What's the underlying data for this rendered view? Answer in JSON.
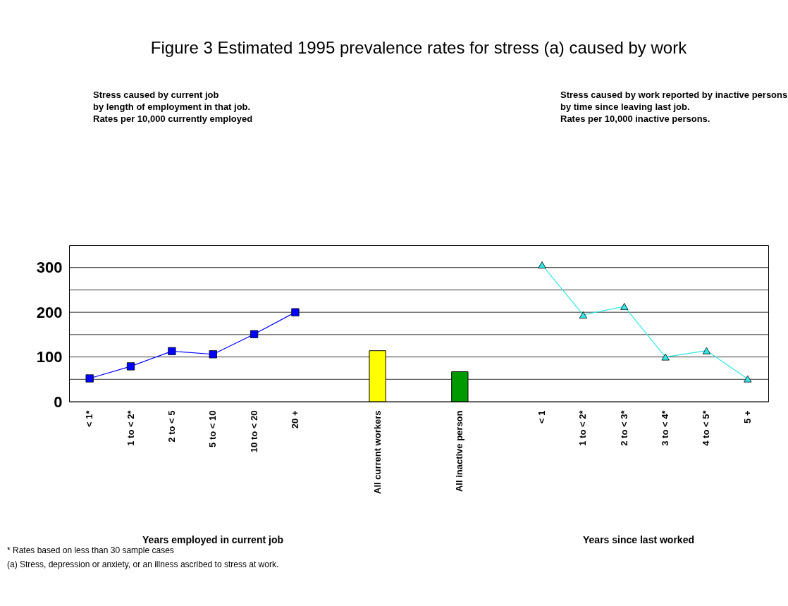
{
  "chart_data": {
    "type": "line",
    "title": "Figure 3 Estimated 1995 prevalence rates for stress (a) caused by work",
    "categories": [
      "< 1*",
      "1 to < 2*",
      "2 to < 5",
      "5 to < 10",
      "10 to < 20",
      "20 +",
      null,
      "All current workers",
      null,
      "All inactive person",
      null,
      "< 1",
      "1 to < 2*",
      "2 to < 3*",
      "3 to < 4*",
      "4 to < 5*",
      "5 +"
    ],
    "series": [
      {
        "color": "#0000ff",
        "marker": "square",
        "values": [
          52,
          79,
          113,
          106,
          151,
          200,
          null,
          null,
          null,
          null,
          null,
          null,
          null,
          null,
          null,
          null,
          null
        ]
      },
      {
        "type": "bar",
        "color": "#ffff00",
        "values": [
          null,
          null,
          null,
          null,
          null,
          null,
          null,
          114,
          null,
          null,
          null,
          null,
          null,
          null,
          null,
          null,
          null
        ]
      },
      {
        "type": "bar",
        "color": "#009900",
        "values": [
          null,
          null,
          null,
          null,
          null,
          null,
          null,
          null,
          null,
          67,
          null,
          null,
          null,
          null,
          null,
          null,
          null
        ]
      },
      {
        "color": "#33e6e6",
        "marker": "triangle",
        "values": [
          null,
          null,
          null,
          null,
          null,
          null,
          null,
          null,
          null,
          null,
          null,
          306,
          194,
          213,
          100,
          114,
          51
        ]
      }
    ],
    "ylim": [
      0,
      350
    ],
    "yticks": [
      0,
      {
        "value": 50,
        "label": null
      },
      100,
      {
        "value": 150,
        "label": null
      },
      200,
      {
        "value": 250,
        "label": null
      },
      300
    ],
    "grid": "y",
    "annotations": [
      "Stress caused by current job\nby length of employment in that job.\nRates per 10,000 currently employed",
      "Stress caused by work reported by inactive persons\n  by time since leaving last job.\n   Rates per 10,000 inactive persons.",
      "Years employed in current job",
      "Years since last worked",
      "* Rates based on less than 30 sample cases",
      "(a) Stress, depression or anxiety, or an illness ascribed to stress at work."
    ]
  }
}
